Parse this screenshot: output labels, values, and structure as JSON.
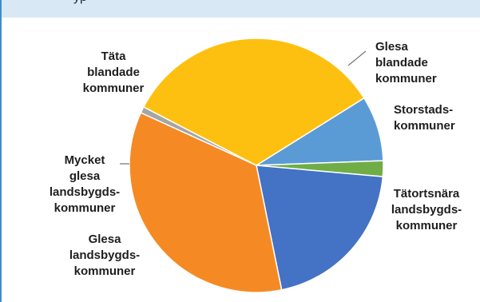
{
  "header": {
    "partial_text": "yp"
  },
  "chart_data": {
    "type": "pie",
    "title": "",
    "unit": "%",
    "slices": [
      {
        "name": "Glesa blandade kommuner",
        "lines": [
          "Glesa",
          "blandade",
          "kommuner"
        ],
        "value": 8.3,
        "color": "#5b9bd5"
      },
      {
        "name": "Storstadskommuner",
        "lines": [
          "Storstads-",
          "kommuner"
        ],
        "value": 2.0,
        "color": "#70ad47"
      },
      {
        "name": "Tätortsnära landsbygdskommuner",
        "lines": [
          "Tätortsnära",
          "landsbygds-",
          "kommuner"
        ],
        "value": 20.4,
        "color": "#4472c4"
      },
      {
        "name": "Glesa landsbygdskommuner",
        "lines": [
          "Glesa",
          "landsbygds-",
          "kommuner"
        ],
        "value": 35.0,
        "color": "#f58a24"
      },
      {
        "name": "Mycket glesa landsbygdskommuner",
        "lines": [
          "Mycket",
          "glesa",
          "landsbygds-",
          "kommuner"
        ],
        "value": 0.8,
        "color": "#a5a5a5"
      },
      {
        "name": "Täta blandade kommuner",
        "lines": [
          "Täta",
          "blandade",
          "kommuner"
        ],
        "value": 33.5,
        "color": "#fec010"
      }
    ],
    "start_angle_deg": 58,
    "direction": "clockwise",
    "legend": "none"
  }
}
